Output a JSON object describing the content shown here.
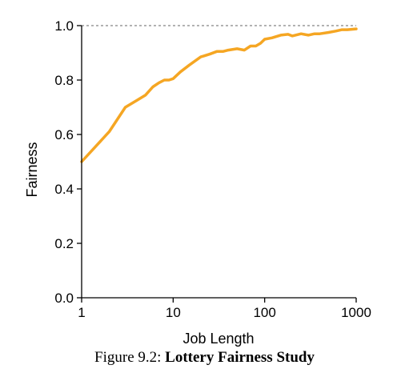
{
  "chart_data": {
    "type": "line",
    "xlabel": "Job Length",
    "ylabel": "Fairness",
    "xscale": "log",
    "xlim": [
      1,
      1000
    ],
    "ylim": [
      0,
      1.0
    ],
    "xticks": [
      "1",
      "10",
      "100",
      "1000"
    ],
    "yticks": [
      "0.0",
      "0.2",
      "0.4",
      "0.6",
      "0.8",
      "1.0"
    ],
    "reference_line": {
      "y": 1.0,
      "style": "dashed"
    },
    "series": [
      {
        "color": "#f5a623",
        "x": [
          1,
          2,
          3,
          4,
          5,
          6,
          7,
          8,
          9,
          10,
          12,
          15,
          20,
          25,
          30,
          35,
          40,
          50,
          60,
          70,
          80,
          90,
          100,
          120,
          150,
          180,
          200,
          250,
          300,
          350,
          400,
          500,
          600,
          700,
          800,
          1000
        ],
        "y": [
          0.5,
          0.61,
          0.7,
          0.725,
          0.745,
          0.775,
          0.79,
          0.8,
          0.8,
          0.805,
          0.83,
          0.855,
          0.885,
          0.895,
          0.905,
          0.905,
          0.91,
          0.915,
          0.91,
          0.925,
          0.925,
          0.935,
          0.95,
          0.955,
          0.965,
          0.968,
          0.962,
          0.97,
          0.965,
          0.97,
          0.97,
          0.975,
          0.98,
          0.985,
          0.985,
          0.988
        ]
      }
    ]
  },
  "caption": {
    "prefix": "Figure 9.2:",
    "title": "Lottery Fairness Study"
  }
}
